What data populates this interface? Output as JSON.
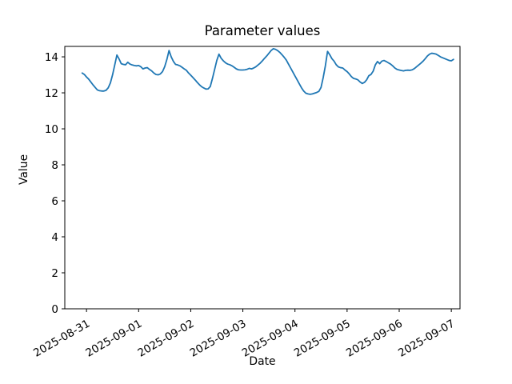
{
  "figure": {
    "title": "Parameter values",
    "xlabel": "Date",
    "ylabel": "Value",
    "background": "#ffffff",
    "spine_color": "#000000"
  },
  "chart_data": {
    "type": "line",
    "title": "Parameter values",
    "xlabel": "Date",
    "ylabel": "Value",
    "grid": false,
    "legend": "none",
    "x_unit": "hours elapsed since 2025-08-30 22:00",
    "xlim": [
      -8,
      174
    ],
    "ylim": [
      0,
      14.58
    ],
    "x_ticks": [
      {
        "t": 2,
        "label": "2025-08-31"
      },
      {
        "t": 26,
        "label": "2025-09-01"
      },
      {
        "t": 50,
        "label": "2025-09-02"
      },
      {
        "t": 74,
        "label": "2025-09-03"
      },
      {
        "t": 98,
        "label": "2025-09-04"
      },
      {
        "t": 122,
        "label": "2025-09-05"
      },
      {
        "t": 146,
        "label": "2025-09-06"
      },
      {
        "t": 170,
        "label": "2025-09-07"
      }
    ],
    "y_ticks": [
      {
        "v": 0,
        "label": "0"
      },
      {
        "v": 2,
        "label": "2"
      },
      {
        "v": 4,
        "label": "4"
      },
      {
        "v": 6,
        "label": "6"
      },
      {
        "v": 8,
        "label": "8"
      },
      {
        "v": 10,
        "label": "10"
      },
      {
        "v": 12,
        "label": "12"
      },
      {
        "v": 14,
        "label": "14"
      }
    ],
    "series": [
      {
        "name": "Parameter values",
        "color": "#1f77b4",
        "line_width": 1.8,
        "points": [
          [
            0,
            13.1
          ],
          [
            1,
            13.02
          ],
          [
            2,
            12.88
          ],
          [
            3,
            12.76
          ],
          [
            4,
            12.6
          ],
          [
            5,
            12.44
          ],
          [
            6,
            12.3
          ],
          [
            7,
            12.16
          ],
          [
            8,
            12.12
          ],
          [
            9,
            12.1
          ],
          [
            10,
            12.1
          ],
          [
            11,
            12.14
          ],
          [
            12,
            12.28
          ],
          [
            13,
            12.55
          ],
          [
            14,
            13.0
          ],
          [
            15,
            13.55
          ],
          [
            16,
            14.1
          ],
          [
            17,
            13.88
          ],
          [
            18,
            13.62
          ],
          [
            19,
            13.58
          ],
          [
            20,
            13.56
          ],
          [
            21,
            13.7
          ],
          [
            22,
            13.6
          ],
          [
            23,
            13.55
          ],
          [
            24,
            13.52
          ],
          [
            25,
            13.5
          ],
          [
            26,
            13.52
          ],
          [
            27,
            13.45
          ],
          [
            28,
            13.33
          ],
          [
            29,
            13.38
          ],
          [
            30,
            13.4
          ],
          [
            31,
            13.3
          ],
          [
            32,
            13.22
          ],
          [
            33,
            13.1
          ],
          [
            34,
            13.02
          ],
          [
            35,
            13.0
          ],
          [
            36,
            13.05
          ],
          [
            37,
            13.18
          ],
          [
            38,
            13.45
          ],
          [
            39,
            13.85
          ],
          [
            40,
            14.35
          ],
          [
            41,
            14.0
          ],
          [
            42,
            13.75
          ],
          [
            43,
            13.58
          ],
          [
            44,
            13.55
          ],
          [
            45,
            13.5
          ],
          [
            46,
            13.42
          ],
          [
            47,
            13.33
          ],
          [
            48,
            13.25
          ],
          [
            49,
            13.1
          ],
          [
            50,
            12.98
          ],
          [
            51,
            12.85
          ],
          [
            52,
            12.72
          ],
          [
            53,
            12.58
          ],
          [
            54,
            12.45
          ],
          [
            55,
            12.34
          ],
          [
            56,
            12.27
          ],
          [
            57,
            12.21
          ],
          [
            58,
            12.22
          ],
          [
            59,
            12.35
          ],
          [
            60,
            12.8
          ],
          [
            61,
            13.3
          ],
          [
            62,
            13.8
          ],
          [
            63,
            14.15
          ],
          [
            64,
            13.92
          ],
          [
            65,
            13.78
          ],
          [
            66,
            13.67
          ],
          [
            67,
            13.6
          ],
          [
            68,
            13.56
          ],
          [
            69,
            13.5
          ],
          [
            70,
            13.42
          ],
          [
            71,
            13.33
          ],
          [
            72,
            13.28
          ],
          [
            73,
            13.27
          ],
          [
            74,
            13.27
          ],
          [
            75,
            13.28
          ],
          [
            76,
            13.31
          ],
          [
            77,
            13.36
          ],
          [
            78,
            13.33
          ],
          [
            79,
            13.38
          ],
          [
            80,
            13.45
          ],
          [
            81,
            13.55
          ],
          [
            82,
            13.65
          ],
          [
            83,
            13.78
          ],
          [
            84,
            13.92
          ],
          [
            85,
            14.05
          ],
          [
            86,
            14.2
          ],
          [
            87,
            14.35
          ],
          [
            88,
            14.45
          ],
          [
            89,
            14.42
          ],
          [
            90,
            14.35
          ],
          [
            91,
            14.25
          ],
          [
            92,
            14.12
          ],
          [
            93,
            13.98
          ],
          [
            94,
            13.82
          ],
          [
            95,
            13.6
          ],
          [
            96,
            13.38
          ],
          [
            97,
            13.16
          ],
          [
            98,
            12.94
          ],
          [
            99,
            12.72
          ],
          [
            100,
            12.5
          ],
          [
            101,
            12.28
          ],
          [
            102,
            12.1
          ],
          [
            103,
            11.98
          ],
          [
            104,
            11.94
          ],
          [
            105,
            11.92
          ],
          [
            106,
            11.94
          ],
          [
            107,
            11.98
          ],
          [
            108,
            12.02
          ],
          [
            109,
            12.08
          ],
          [
            110,
            12.3
          ],
          [
            111,
            12.85
          ],
          [
            112,
            13.5
          ],
          [
            113,
            14.3
          ],
          [
            114,
            14.12
          ],
          [
            115,
            13.9
          ],
          [
            116,
            13.76
          ],
          [
            117,
            13.56
          ],
          [
            118,
            13.44
          ],
          [
            119,
            13.4
          ],
          [
            120,
            13.38
          ],
          [
            121,
            13.27
          ],
          [
            122,
            13.18
          ],
          [
            123,
            13.05
          ],
          [
            124,
            12.9
          ],
          [
            125,
            12.8
          ],
          [
            126,
            12.77
          ],
          [
            127,
            12.72
          ],
          [
            128,
            12.6
          ],
          [
            129,
            12.52
          ],
          [
            130,
            12.58
          ],
          [
            131,
            12.72
          ],
          [
            132,
            12.95
          ],
          [
            133,
            13.02
          ],
          [
            134,
            13.2
          ],
          [
            135,
            13.55
          ],
          [
            136,
            13.74
          ],
          [
            137,
            13.62
          ],
          [
            138,
            13.76
          ],
          [
            139,
            13.8
          ],
          [
            140,
            13.74
          ],
          [
            141,
            13.67
          ],
          [
            142,
            13.6
          ],
          [
            143,
            13.5
          ],
          [
            144,
            13.38
          ],
          [
            145,
            13.3
          ],
          [
            146,
            13.27
          ],
          [
            147,
            13.24
          ],
          [
            148,
            13.22
          ],
          [
            149,
            13.25
          ],
          [
            150,
            13.26
          ],
          [
            151,
            13.25
          ],
          [
            152,
            13.28
          ],
          [
            153,
            13.35
          ],
          [
            154,
            13.45
          ],
          [
            155,
            13.55
          ],
          [
            156,
            13.65
          ],
          [
            157,
            13.76
          ],
          [
            158,
            13.9
          ],
          [
            159,
            14.05
          ],
          [
            160,
            14.15
          ],
          [
            161,
            14.2
          ],
          [
            162,
            14.18
          ],
          [
            163,
            14.15
          ],
          [
            164,
            14.08
          ],
          [
            165,
            14.0
          ],
          [
            166,
            13.95
          ],
          [
            167,
            13.9
          ],
          [
            168,
            13.85
          ],
          [
            169,
            13.8
          ],
          [
            170,
            13.78
          ],
          [
            171,
            13.86
          ]
        ]
      }
    ]
  }
}
